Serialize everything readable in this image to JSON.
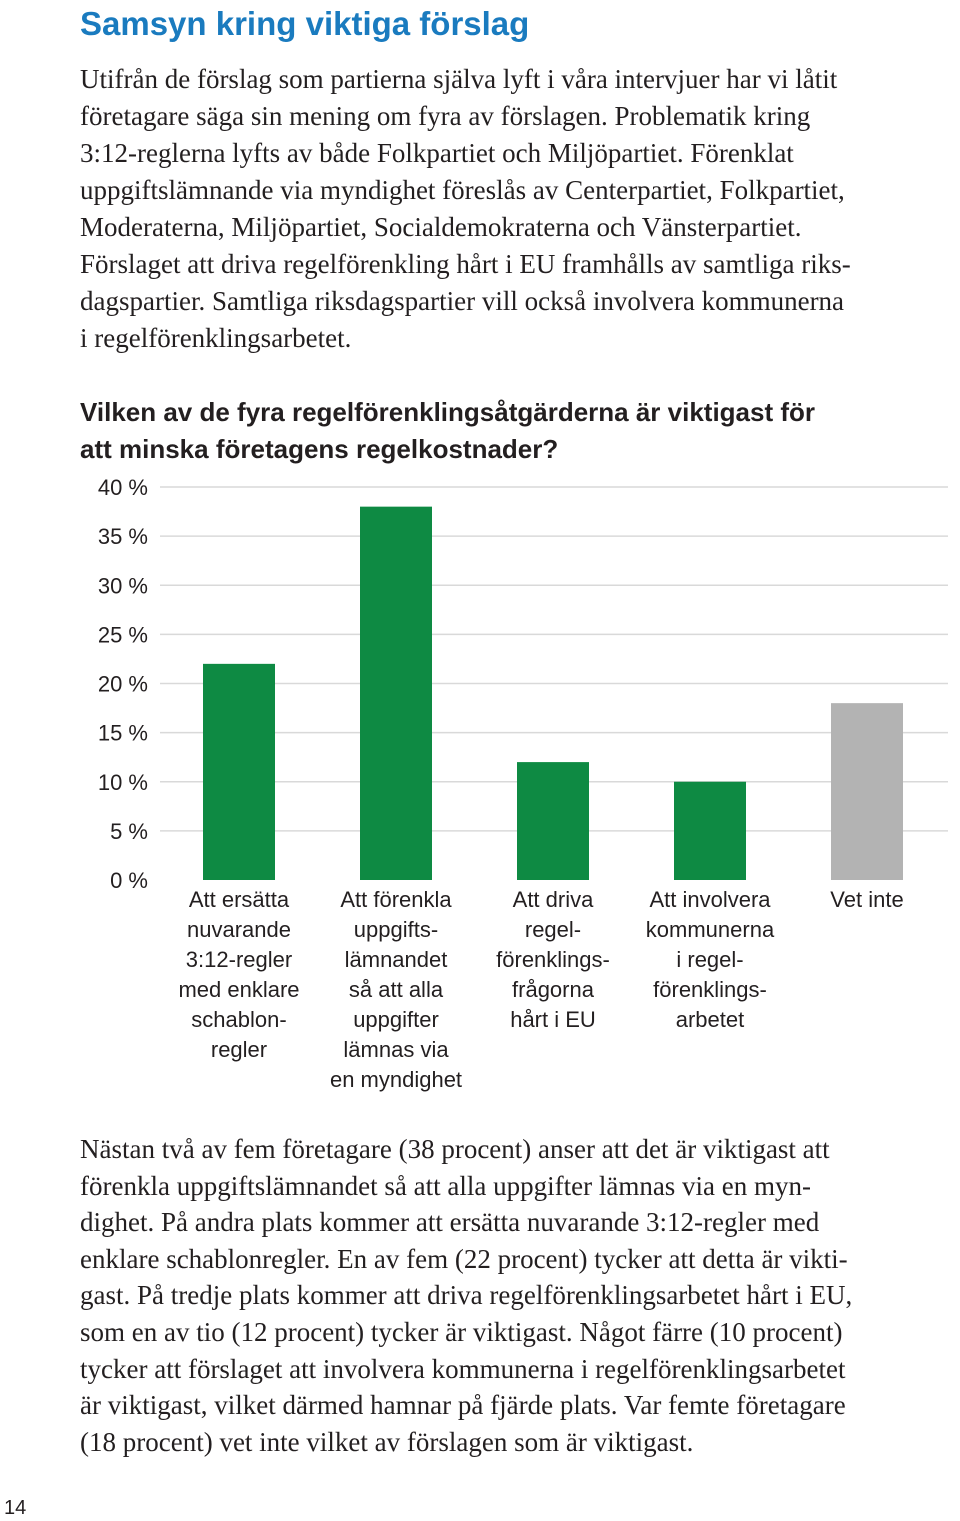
{
  "heading": "Samsyn kring viktiga förslag",
  "intro_lines": [
    "Utifrån de förslag som partierna själva lyft i våra intervjuer har vi låtit",
    "företagare säga sin mening om fyra av förslagen. Problematik kring",
    "3:12-reglerna lyfts av både Folkpartiet och Miljöpartiet. Förenklat",
    "uppgiftslämnande via myndighet föreslås av Centerpartiet, Folkpartiet,",
    "Moderaterna, Miljöpartiet, Socialdemokraterna och Vänsterpartiet.",
    "Förslaget att driva regelförenkling hårt i EU framhålls av samtliga riks-",
    "dagspartier. Samtliga riksdagspartier vill också involvera kommunerna",
    "i regelförenklingsarbetet."
  ],
  "question_lines": [
    "Vilken av de fyra regelförenklingsåtgärderna är viktigast för",
    "att minska företagens regelkostnader?"
  ],
  "chart_data": {
    "type": "bar",
    "title": "Vilken av de fyra regelförenklingsåtgärderna är viktigast för att minska företagens regelkostnader?",
    "categories": [
      "Att ersätta nuvarande 3:12-regler med enklare schablonregler",
      "Att förenkla uppgiftslämnandet så att alla uppgifter lämnas via en myndighet",
      "Att driva regelförenklingsfrågorna hårt i EU",
      "Att involvera kommunerna i regelförenklingsarbetet",
      "Vet inte"
    ],
    "category_label_lines": [
      [
        "Att ersätta",
        "nuvarande",
        "3:12-regler",
        "med enklare",
        "schablon-",
        "regler"
      ],
      [
        "Att förenkla",
        "uppgifts-",
        "lämnandet",
        "så att alla",
        "uppgifter",
        "lämnas via",
        "en myndighet"
      ],
      [
        "Att driva",
        "regel-",
        "förenklings-",
        "frågorna",
        "hårt i EU"
      ],
      [
        "Att involvera",
        "kommunerna",
        "i regel-",
        "förenklings-",
        "arbetet"
      ],
      [
        "Vet inte"
      ]
    ],
    "values": [
      22,
      38,
      12,
      10,
      18
    ],
    "bar_colors": [
      "#0e8a43",
      "#0e8a43",
      "#0e8a43",
      "#0e8a43",
      "#b3b3b3"
    ],
    "y_ticks": [
      "40 %",
      "35 %",
      "30 %",
      "25 %",
      "20 %",
      "15 %",
      "10 %",
      "5 %",
      "0 %"
    ],
    "ylim": [
      0,
      40
    ],
    "xlabel": "",
    "ylabel": "",
    "grid": true,
    "gridline_color": "#d9d9d9"
  },
  "body_lines": [
    "Nästan två av fem företagare (38 procent) anser att det är viktigast att",
    "förenkla uppgiftslämnandet så att alla uppgifter lämnas via en myn-",
    "dighet. På andra plats kommer att ersätta nuvarande 3:12-regler med",
    "enklare schablonregler. En av fem (22 procent) tycker att detta är vikti-",
    "gast. På tredje plats kommer att driva regelförenklingsarbetet hårt i EU,",
    "som en av tio (12 procent) tycker är viktigast. Något färre (10 procent)",
    "tycker att förslaget att involvera kommunerna i regelförenklingsarbetet",
    "är viktigast, vilket därmed hamnar på fjärde plats. Var femte företagare",
    "(18 procent) vet inte vilket av förslagen som är viktigast."
  ],
  "page_number": "14",
  "colors": {
    "heading": "#1a7bbf",
    "text": "#231f20"
  }
}
